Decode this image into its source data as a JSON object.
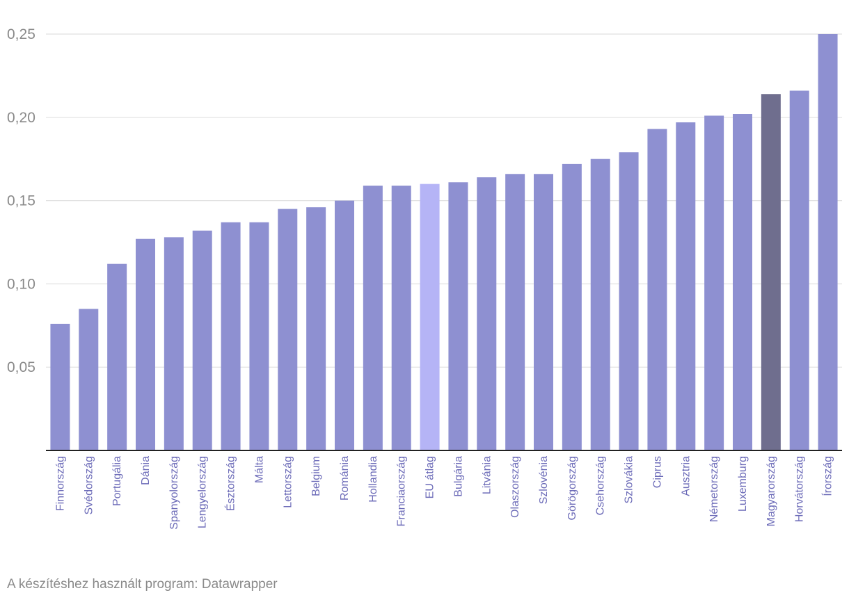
{
  "footer_text": "A készítéshez használt program: Datawrapper",
  "colors": {
    "default_bar": "#8e90d1",
    "eu_average_bar": "#b5b4f6",
    "highlight_bar": "#6f6e8e",
    "label": "#6c6bb8",
    "grid": "#e0e0e0",
    "axis": "#222222",
    "tick_text": "#8a8a8a"
  },
  "chart_data": {
    "type": "bar",
    "title": "",
    "xlabel": "",
    "ylabel": "",
    "ylim": [
      0,
      0.25
    ],
    "yticks": [
      0.05,
      0.1,
      0.15,
      0.2,
      0.25
    ],
    "ytick_labels": [
      "0,05",
      "0,10",
      "0,15",
      "0,20",
      "0,25"
    ],
    "grid": true,
    "categories": [
      "Finnország",
      "Svédország",
      "Portugália",
      "Dánia",
      "Spanyolország",
      "Lengyelország",
      "Észtország",
      "Málta",
      "Lettország",
      "Belgium",
      "Románia",
      "Hollandia",
      "Franciaország",
      "EU átlag",
      "Bulgária",
      "Litvánia",
      "Olaszország",
      "Szlovénia",
      "Görögország",
      "Csehország",
      "Szlovákia",
      "Ciprus",
      "Ausztria",
      "Németország",
      "Luxemburg",
      "Magyarország",
      "Horvátország",
      "Írország"
    ],
    "values": [
      0.076,
      0.085,
      0.112,
      0.127,
      0.128,
      0.132,
      0.137,
      0.137,
      0.145,
      0.146,
      0.15,
      0.159,
      0.159,
      0.16,
      0.161,
      0.164,
      0.166,
      0.166,
      0.172,
      0.175,
      0.179,
      0.193,
      0.197,
      0.201,
      0.202,
      0.214,
      0.216,
      0.25
    ],
    "special_bars": {
      "EU átlag": "eu_average_bar",
      "Magyarország": "highlight_bar"
    }
  }
}
